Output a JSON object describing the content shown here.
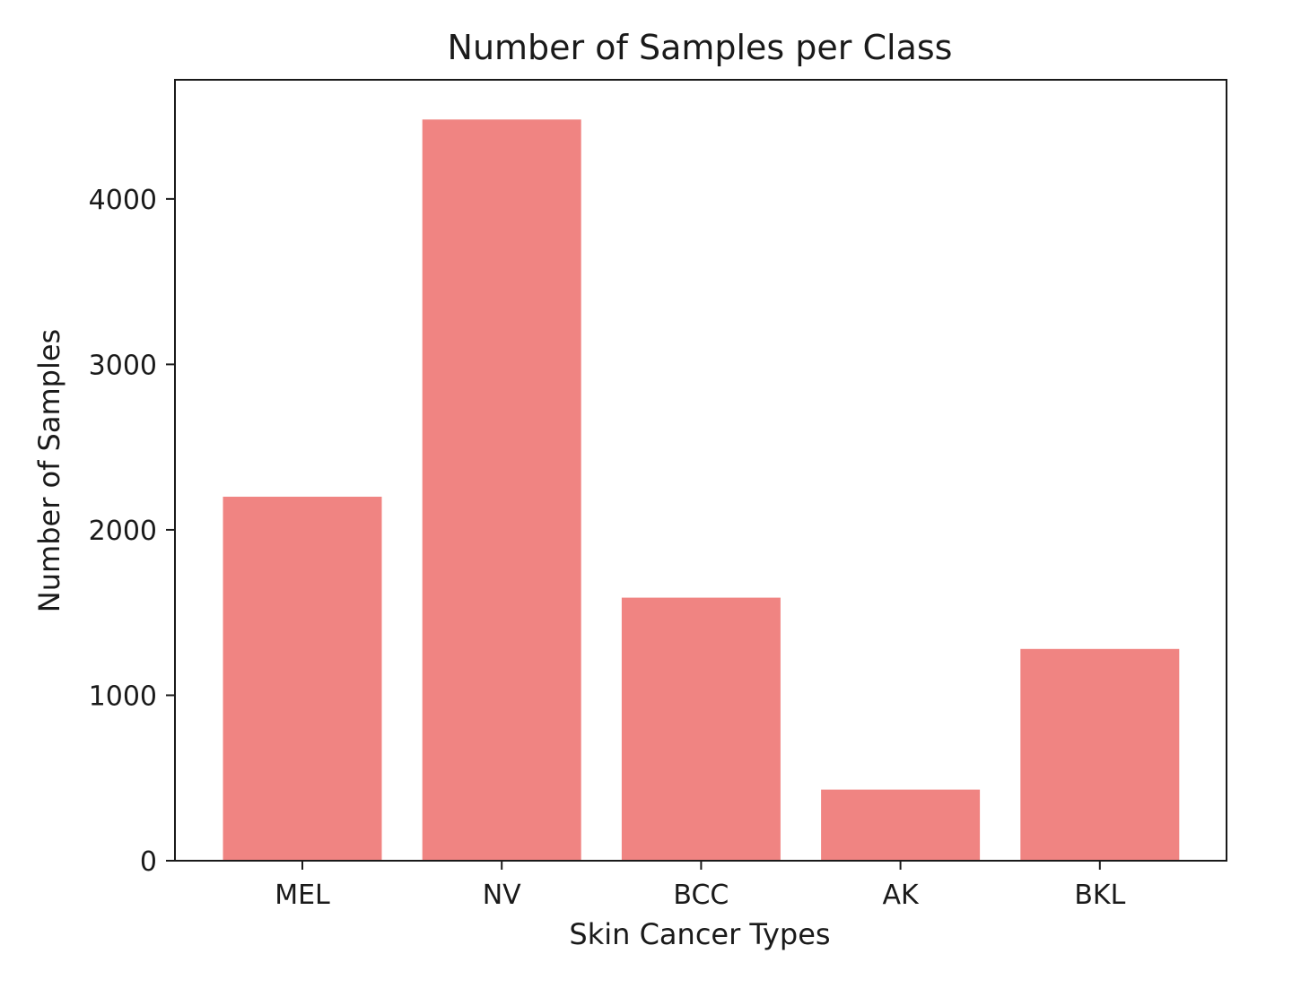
{
  "chart_data": {
    "type": "bar",
    "title": "Number of Samples per Class",
    "xlabel": "Skin Cancer Types",
    "ylabel": "Number of Samples",
    "categories": [
      "MEL",
      "NV",
      "BCC",
      "AK",
      "BKL"
    ],
    "values": [
      2200,
      4480,
      1590,
      430,
      1280
    ],
    "ylim": [
      0,
      4720
    ],
    "yticks": [
      0,
      1000,
      2000,
      3000,
      4000
    ],
    "ytick_labels": [
      "0",
      "1000",
      "2000",
      "3000",
      "4000"
    ],
    "bar_color": "#f08482",
    "grid": false,
    "legend": "none"
  }
}
